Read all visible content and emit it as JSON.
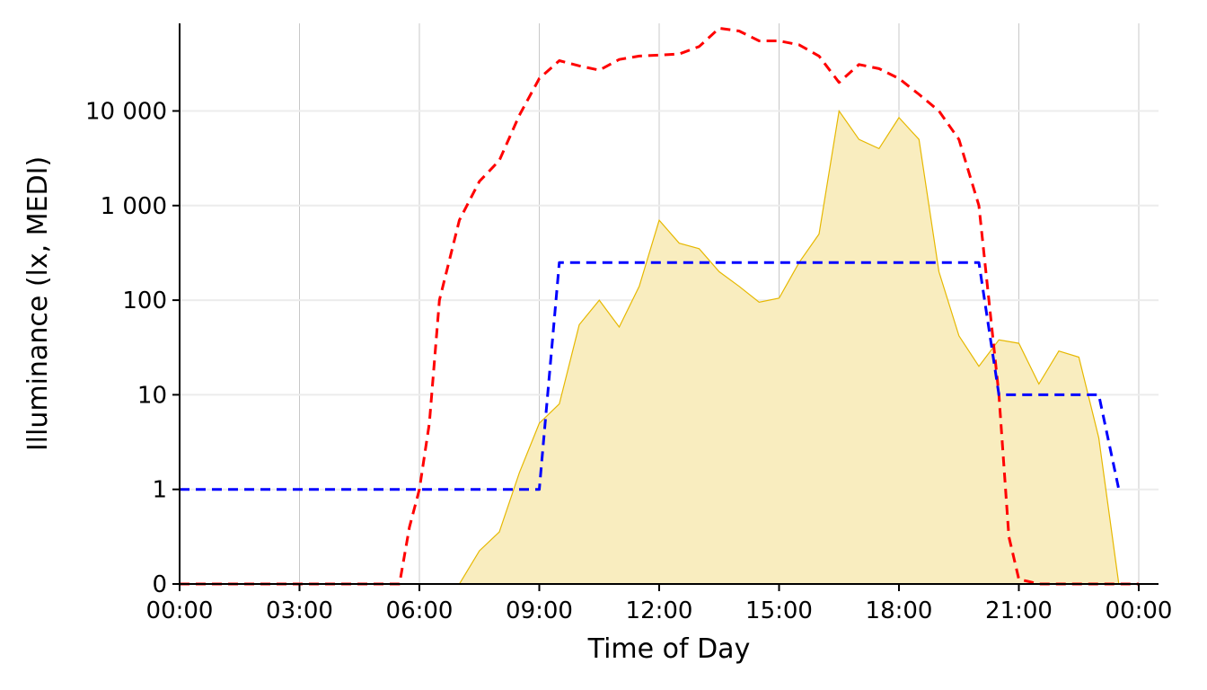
{
  "chart_data": {
    "type": "area",
    "title": "",
    "xlabel": "Time of Day",
    "ylabel": "Illuminance (lx, MEDI)",
    "y_scale": "symlog",
    "xlim": [
      0,
      24
    ],
    "ylim": [
      0,
      80000
    ],
    "grid": true,
    "legend": "none",
    "x_ticks": [
      0,
      3,
      6,
      9,
      12,
      15,
      18,
      21,
      24
    ],
    "x_tick_labels": [
      "00:00",
      "03:00",
      "06:00",
      "09:00",
      "12:00",
      "15:00",
      "18:00",
      "21:00",
      "00:00"
    ],
    "y_ticks": [
      0,
      1,
      10,
      100,
      1000,
      10000
    ],
    "y_tick_labels": [
      "0",
      "1",
      "10",
      "100",
      "1 000",
      "10 000"
    ],
    "series": [
      {
        "kind": "area",
        "color": "#e6b800",
        "fill": "#f9edbf",
        "x": [
          0,
          7.0,
          7.5,
          8.0,
          8.5,
          9.0,
          9.5,
          10.0,
          10.5,
          11.0,
          11.5,
          12.0,
          12.5,
          13.0,
          13.5,
          14.0,
          14.5,
          15.0,
          15.5,
          16.0,
          16.5,
          17.0,
          17.5,
          18.0,
          18.5,
          19.0,
          19.5,
          20.0,
          20.5,
          21.0,
          21.5,
          22.0,
          22.5,
          23.0,
          23.5
        ],
        "y": [
          0,
          0,
          0.35,
          0.55,
          1.5,
          5,
          8,
          55,
          100,
          52,
          140,
          700,
          400,
          350,
          200,
          140,
          95,
          105,
          250,
          500,
          10000,
          5000,
          4000,
          8500,
          5000,
          200,
          42,
          20,
          38,
          35,
          13,
          29,
          25,
          3.5,
          0
        ]
      },
      {
        "kind": "line",
        "color": "#ff0000",
        "dash": "dashed",
        "x": [
          0,
          5.5,
          5.75,
          6.0,
          6.25,
          6.5,
          7.0,
          7.5,
          8.0,
          8.5,
          9.0,
          9.5,
          10.0,
          10.5,
          11.0,
          11.5,
          12.0,
          12.5,
          13.0,
          13.5,
          14.0,
          14.5,
          15.0,
          15.5,
          16.0,
          16.5,
          17.0,
          17.5,
          18.0,
          18.5,
          19.0,
          19.5,
          20.0,
          20.5,
          20.75,
          21.0,
          21.5,
          22.0,
          23.0,
          24.0
        ],
        "y": [
          0,
          0,
          0.6,
          1,
          5,
          100,
          700,
          1800,
          3000,
          9000,
          22000,
          34000,
          30000,
          27000,
          35000,
          38000,
          39000,
          40000,
          48000,
          75000,
          70000,
          55000,
          55000,
          50000,
          38000,
          20000,
          31000,
          28000,
          22000,
          15000,
          10000,
          5000,
          1000,
          10,
          0.5,
          0.05,
          0,
          0,
          0,
          0
        ]
      },
      {
        "kind": "line",
        "color": "#0000ff",
        "dash": "dashed",
        "x": [
          0,
          9.0,
          9.5,
          20.0,
          20.5,
          21.0,
          22.0,
          23.0,
          23.5
        ],
        "y": [
          1,
          1,
          250,
          250,
          10,
          10,
          10,
          10,
          1
        ]
      }
    ]
  }
}
